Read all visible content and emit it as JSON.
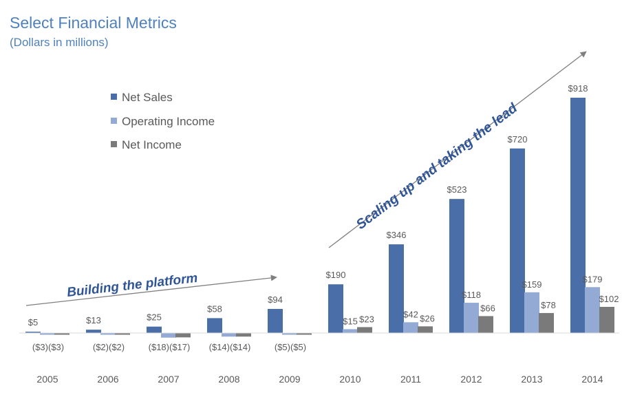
{
  "header": {
    "title": "Select Financial Metrics",
    "subtitle": "(Dollars in millions)"
  },
  "annotations": {
    "left_arrow_text": "Building the platform",
    "right_arrow_text": "Scaling up and taking the lead"
  },
  "colors": {
    "net_sales": "#4a6fa8",
    "operating_income": "#92aad4",
    "net_income": "#7a7a7a",
    "annotation": "#2f5597",
    "title": "#4f81bd"
  },
  "chart_data": {
    "type": "bar",
    "title": "Select Financial Metrics",
    "subtitle": "(Dollars in millions)",
    "xlabel": "",
    "ylabel": "",
    "grid": false,
    "legend_placement": "top-left",
    "categories": [
      "2005",
      "2006",
      "2007",
      "2008",
      "2009",
      "2010",
      "2011",
      "2012",
      "2013",
      "2014"
    ],
    "series": [
      {
        "name": "Net Sales",
        "color": "#4a6fa8",
        "values": [
          5,
          13,
          25,
          58,
          94,
          190,
          346,
          523,
          720,
          918
        ],
        "labels": [
          "$5",
          "$13",
          "$25",
          "$58",
          "$94",
          "$190",
          "$346",
          "$523",
          "$720",
          "$918"
        ]
      },
      {
        "name": "Operating Income",
        "color": "#92aad4",
        "values": [
          -3,
          -2,
          -18,
          -14,
          -5,
          15,
          42,
          118,
          159,
          179
        ],
        "labels": [
          "($3)",
          "($2)",
          "($18)",
          "($14)",
          "($5)",
          "$15",
          "$42",
          "$118",
          "$159",
          "$179"
        ]
      },
      {
        "name": "Net Income",
        "color": "#7a7a7a",
        "values": [
          -3,
          -2,
          -17,
          -14,
          -5,
          23,
          26,
          66,
          78,
          102
        ],
        "labels": [
          "($3)",
          "($2)",
          "($17)",
          "($14)",
          "($5)",
          "$23",
          "$26",
          "$66",
          "$78",
          "$102"
        ]
      }
    ]
  }
}
